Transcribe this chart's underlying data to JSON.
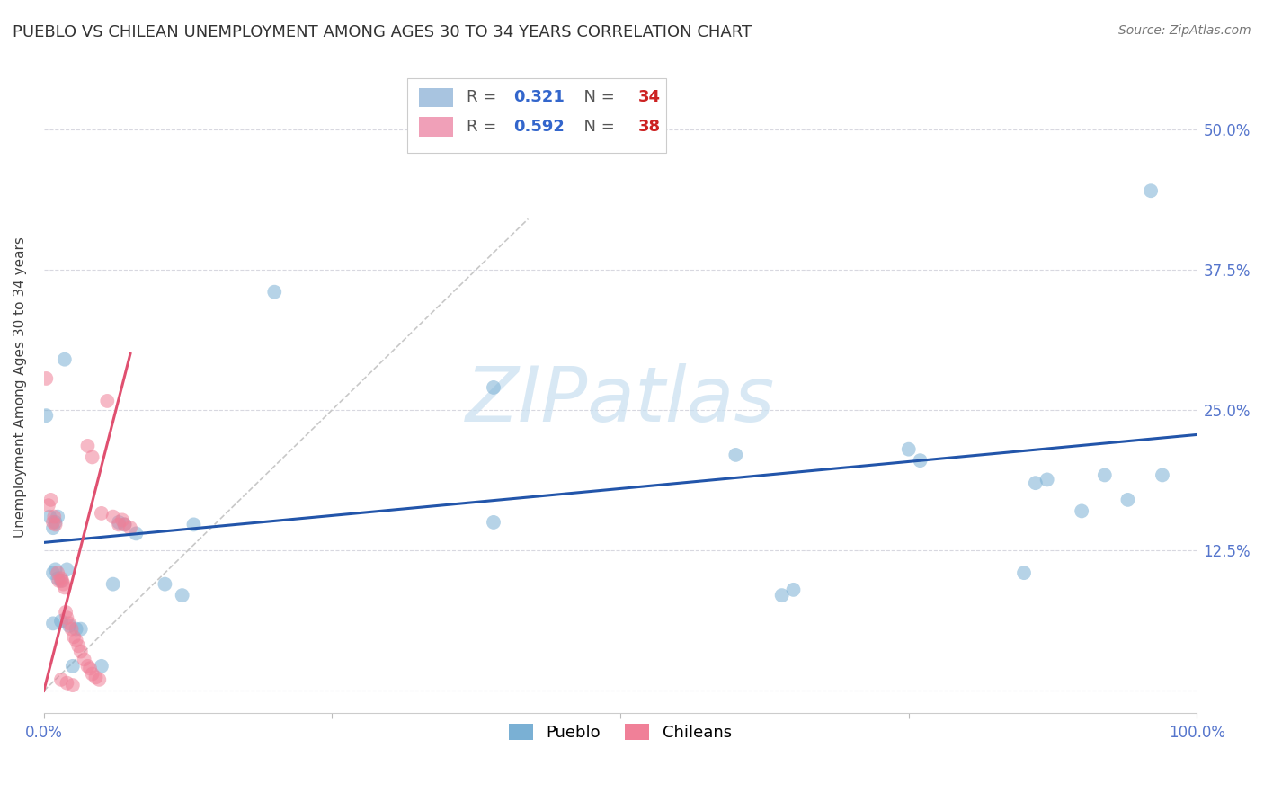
{
  "title": "PUEBLO VS CHILEAN UNEMPLOYMENT AMONG AGES 30 TO 34 YEARS CORRELATION CHART",
  "source": "Source: ZipAtlas.com",
  "ylabel": "Unemployment Among Ages 30 to 34 years",
  "xlim": [
    0.0,
    1.0
  ],
  "ylim": [
    -0.02,
    0.56
  ],
  "xticks": [
    0.0,
    0.25,
    0.5,
    0.75,
    1.0
  ],
  "xticklabels": [
    "0.0%",
    "",
    "",
    "",
    "100.0%"
  ],
  "yticks": [
    0.0,
    0.125,
    0.25,
    0.375,
    0.5
  ],
  "yticklabels": [
    "",
    "12.5%",
    "25.0%",
    "37.5%",
    "50.0%"
  ],
  "pueblo_scatter": [
    [
      0.002,
      0.245
    ],
    [
      0.018,
      0.295
    ],
    [
      0.005,
      0.155
    ],
    [
      0.008,
      0.145
    ],
    [
      0.01,
      0.15
    ],
    [
      0.012,
      0.155
    ],
    [
      0.008,
      0.105
    ],
    [
      0.01,
      0.108
    ],
    [
      0.012,
      0.1
    ],
    [
      0.015,
      0.098
    ],
    [
      0.02,
      0.108
    ],
    [
      0.008,
      0.06
    ],
    [
      0.015,
      0.062
    ],
    [
      0.022,
      0.058
    ],
    [
      0.028,
      0.055
    ],
    [
      0.032,
      0.055
    ],
    [
      0.025,
      0.022
    ],
    [
      0.05,
      0.022
    ],
    [
      0.06,
      0.095
    ],
    [
      0.065,
      0.15
    ],
    [
      0.07,
      0.148
    ],
    [
      0.08,
      0.14
    ],
    [
      0.105,
      0.095
    ],
    [
      0.12,
      0.085
    ],
    [
      0.13,
      0.148
    ],
    [
      0.2,
      0.355
    ],
    [
      0.39,
      0.15
    ],
    [
      0.39,
      0.27
    ],
    [
      0.6,
      0.21
    ],
    [
      0.64,
      0.085
    ],
    [
      0.65,
      0.09
    ],
    [
      0.75,
      0.215
    ],
    [
      0.76,
      0.205
    ],
    [
      0.85,
      0.105
    ],
    [
      0.86,
      0.185
    ],
    [
      0.87,
      0.188
    ],
    [
      0.9,
      0.16
    ],
    [
      0.92,
      0.192
    ],
    [
      0.94,
      0.17
    ],
    [
      0.96,
      0.445
    ],
    [
      0.97,
      0.192
    ]
  ],
  "chilean_scatter": [
    [
      0.002,
      0.278
    ],
    [
      0.004,
      0.165
    ],
    [
      0.006,
      0.17
    ],
    [
      0.008,
      0.15
    ],
    [
      0.009,
      0.155
    ],
    [
      0.01,
      0.148
    ],
    [
      0.012,
      0.105
    ],
    [
      0.013,
      0.098
    ],
    [
      0.015,
      0.1
    ],
    [
      0.016,
      0.098
    ],
    [
      0.017,
      0.095
    ],
    [
      0.018,
      0.092
    ],
    [
      0.019,
      0.07
    ],
    [
      0.02,
      0.065
    ],
    [
      0.022,
      0.06
    ],
    [
      0.024,
      0.055
    ],
    [
      0.026,
      0.048
    ],
    [
      0.028,
      0.045
    ],
    [
      0.03,
      0.04
    ],
    [
      0.032,
      0.035
    ],
    [
      0.035,
      0.028
    ],
    [
      0.038,
      0.022
    ],
    [
      0.04,
      0.02
    ],
    [
      0.042,
      0.015
    ],
    [
      0.045,
      0.012
    ],
    [
      0.048,
      0.01
    ],
    [
      0.05,
      0.158
    ],
    [
      0.055,
      0.258
    ],
    [
      0.06,
      0.155
    ],
    [
      0.065,
      0.148
    ],
    [
      0.068,
      0.152
    ],
    [
      0.07,
      0.148
    ],
    [
      0.075,
      0.145
    ],
    [
      0.038,
      0.218
    ],
    [
      0.042,
      0.208
    ],
    [
      0.015,
      0.01
    ],
    [
      0.02,
      0.007
    ],
    [
      0.025,
      0.005
    ]
  ],
  "pueblo_line": {
    "x0": 0.0,
    "y0": 0.132,
    "x1": 1.0,
    "y1": 0.228
  },
  "chilean_line": {
    "x0": 0.0,
    "y0": 0.0,
    "x1": 0.075,
    "y1": 0.3
  },
  "diagonal_line": {
    "x0": 0.0,
    "y0": 0.0,
    "x1": 0.42,
    "y1": 0.42
  },
  "pueblo_color": "#7ab0d4",
  "chilean_color": "#f08098",
  "pueblo_line_color": "#2255aa",
  "chilean_line_color": "#e05070",
  "diagonal_color": "#c8c8c8",
  "watermark_text": "ZIPatlas",
  "watermark_color": "#c8dff0",
  "background_color": "#ffffff",
  "grid_color": "#d8d8e0",
  "tick_color": "#5575cc",
  "title_fontsize": 13,
  "axis_label_fontsize": 11,
  "tick_fontsize": 12,
  "scatter_size": 130,
  "scatter_alpha": 0.55,
  "legend_R_color": "#3366cc",
  "legend_N_color": "#cc2222",
  "legend_label_color": "#555555",
  "legend_box_color": "#a8c4e0",
  "legend_box2_color": "#f0a0b8",
  "bottom_legend_labels": [
    "Pueblo",
    "Chileans"
  ]
}
